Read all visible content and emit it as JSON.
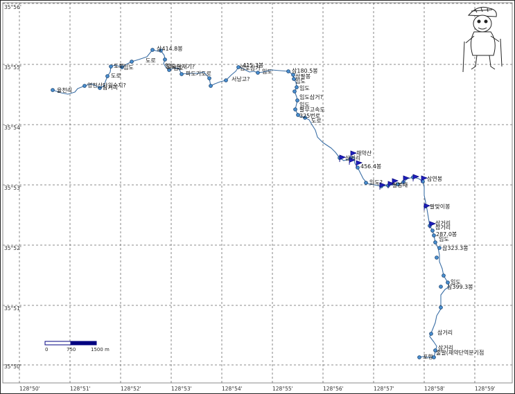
{
  "map": {
    "lat_labels": [
      "35°56'",
      "35°55'",
      "35°54'",
      "35°53'",
      "35°52'",
      "35°51'",
      "35°50'"
    ],
    "lon_labels": [
      "128°50'",
      "128°51'",
      "128°52'",
      "128°53'",
      "128°54'",
      "128°55'",
      "128°56'",
      "128°57'",
      "128°58'",
      "128°59'"
    ],
    "scale_bar": {
      "labels": [
        "0",
        "750",
        "1500 m"
      ]
    },
    "colors": {
      "track": "#3a6ea5",
      "waypoint_fill": "#4a8fd0",
      "flag": "#1f1fbf",
      "grid": "#666666"
    },
    "waypoints": [
      {
        "id": "w1",
        "label": "율천리"
      },
      {
        "id": "w2",
        "label": "영천산단원수지?"
      },
      {
        "id": "w3",
        "label": "삼거리"
      },
      {
        "id": "w4",
        "label": "도로"
      },
      {
        "id": "w5",
        "label": "도로"
      },
      {
        "id": "w6",
        "label": "임도"
      },
      {
        "id": "w7",
        "label": "도로"
      },
      {
        "id": "w8",
        "label": "삼414.8봉"
      },
      {
        "id": "w9",
        "label": "임도"
      },
      {
        "id": "w10",
        "label": "임도발재기?"
      },
      {
        "id": "w11",
        "label": "임도"
      },
      {
        "id": "w12",
        "label": "파도기도로"
      },
      {
        "id": "w13",
        "label": "서낭고?"
      },
      {
        "id": "w14",
        "label": "415.3봉"
      },
      {
        "id": "w15",
        "label": "임도삼거"
      },
      {
        "id": "w16",
        "label": "임도"
      },
      {
        "id": "w17",
        "label": "삼180.5봉"
      },
      {
        "id": "w18",
        "label": "삼팔봉"
      },
      {
        "id": "w19",
        "label": "임도"
      },
      {
        "id": "w20",
        "label": "임도"
      },
      {
        "id": "w21",
        "label": "임도삼거?"
      },
      {
        "id": "w22",
        "label": "임도"
      },
      {
        "id": "w23",
        "label": "팔부고속도"
      },
      {
        "id": "w24",
        "label": "325번로"
      },
      {
        "id": "w25",
        "label": "도로"
      },
      {
        "id": "w26",
        "label": "채약산"
      },
      {
        "id": "w27",
        "label": "삼거리"
      },
      {
        "id": "w28",
        "label": "456.4봉"
      },
      {
        "id": "w29",
        "label": "임도?"
      },
      {
        "id": "w30",
        "label": "팔봉재"
      },
      {
        "id": "w31",
        "label": "삼연봉"
      },
      {
        "id": "w32",
        "label": "팔맞이봉"
      },
      {
        "id": "w33",
        "label": "삼거리"
      },
      {
        "id": "w34",
        "label": "삼거리"
      },
      {
        "id": "w35",
        "label": "287.0봉"
      },
      {
        "id": "w36",
        "label": "임도"
      },
      {
        "id": "w37",
        "label": "삼323.3봉"
      },
      {
        "id": "w38",
        "label": "임도"
      },
      {
        "id": "w39",
        "label": "삼399.3봉"
      },
      {
        "id": "w40",
        "label": "삼거리"
      },
      {
        "id": "w41",
        "label": "삼거리"
      },
      {
        "id": "w42",
        "label": "출발(채약단역분기점"
      },
      {
        "id": "w43",
        "label": "포항"
      }
    ]
  }
}
